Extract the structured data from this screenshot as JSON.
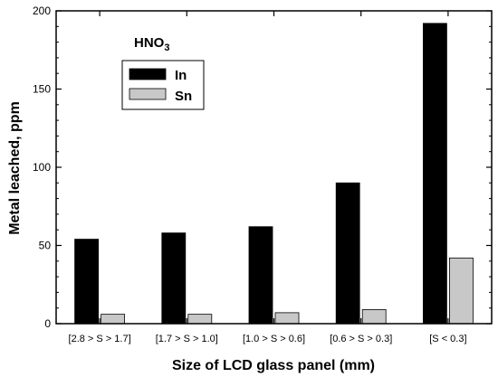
{
  "chart_data": {
    "type": "bar",
    "annotation": "HNO3",
    "xlabel": "Size of LCD glass panel (mm)",
    "ylabel": "Metal leached, ppm",
    "ylim": [
      0,
      200
    ],
    "yticks": [
      0,
      50,
      100,
      150,
      200
    ],
    "categories": [
      "[2.8 > S > 1.7]",
      "[1.7 > S > 1.0]",
      "[1.0 > S > 0.6]",
      "[0.6 > S > 0.3]",
      "[S <  0.3]"
    ],
    "series": [
      {
        "name": "In",
        "values": [
          54,
          58,
          62,
          90,
          192
        ],
        "color": "#000000"
      },
      {
        "name": "Sn",
        "values": [
          6,
          6,
          7,
          9,
          42
        ],
        "color": "#c8c8c8"
      }
    ],
    "legend": "top-left",
    "grid": false
  }
}
